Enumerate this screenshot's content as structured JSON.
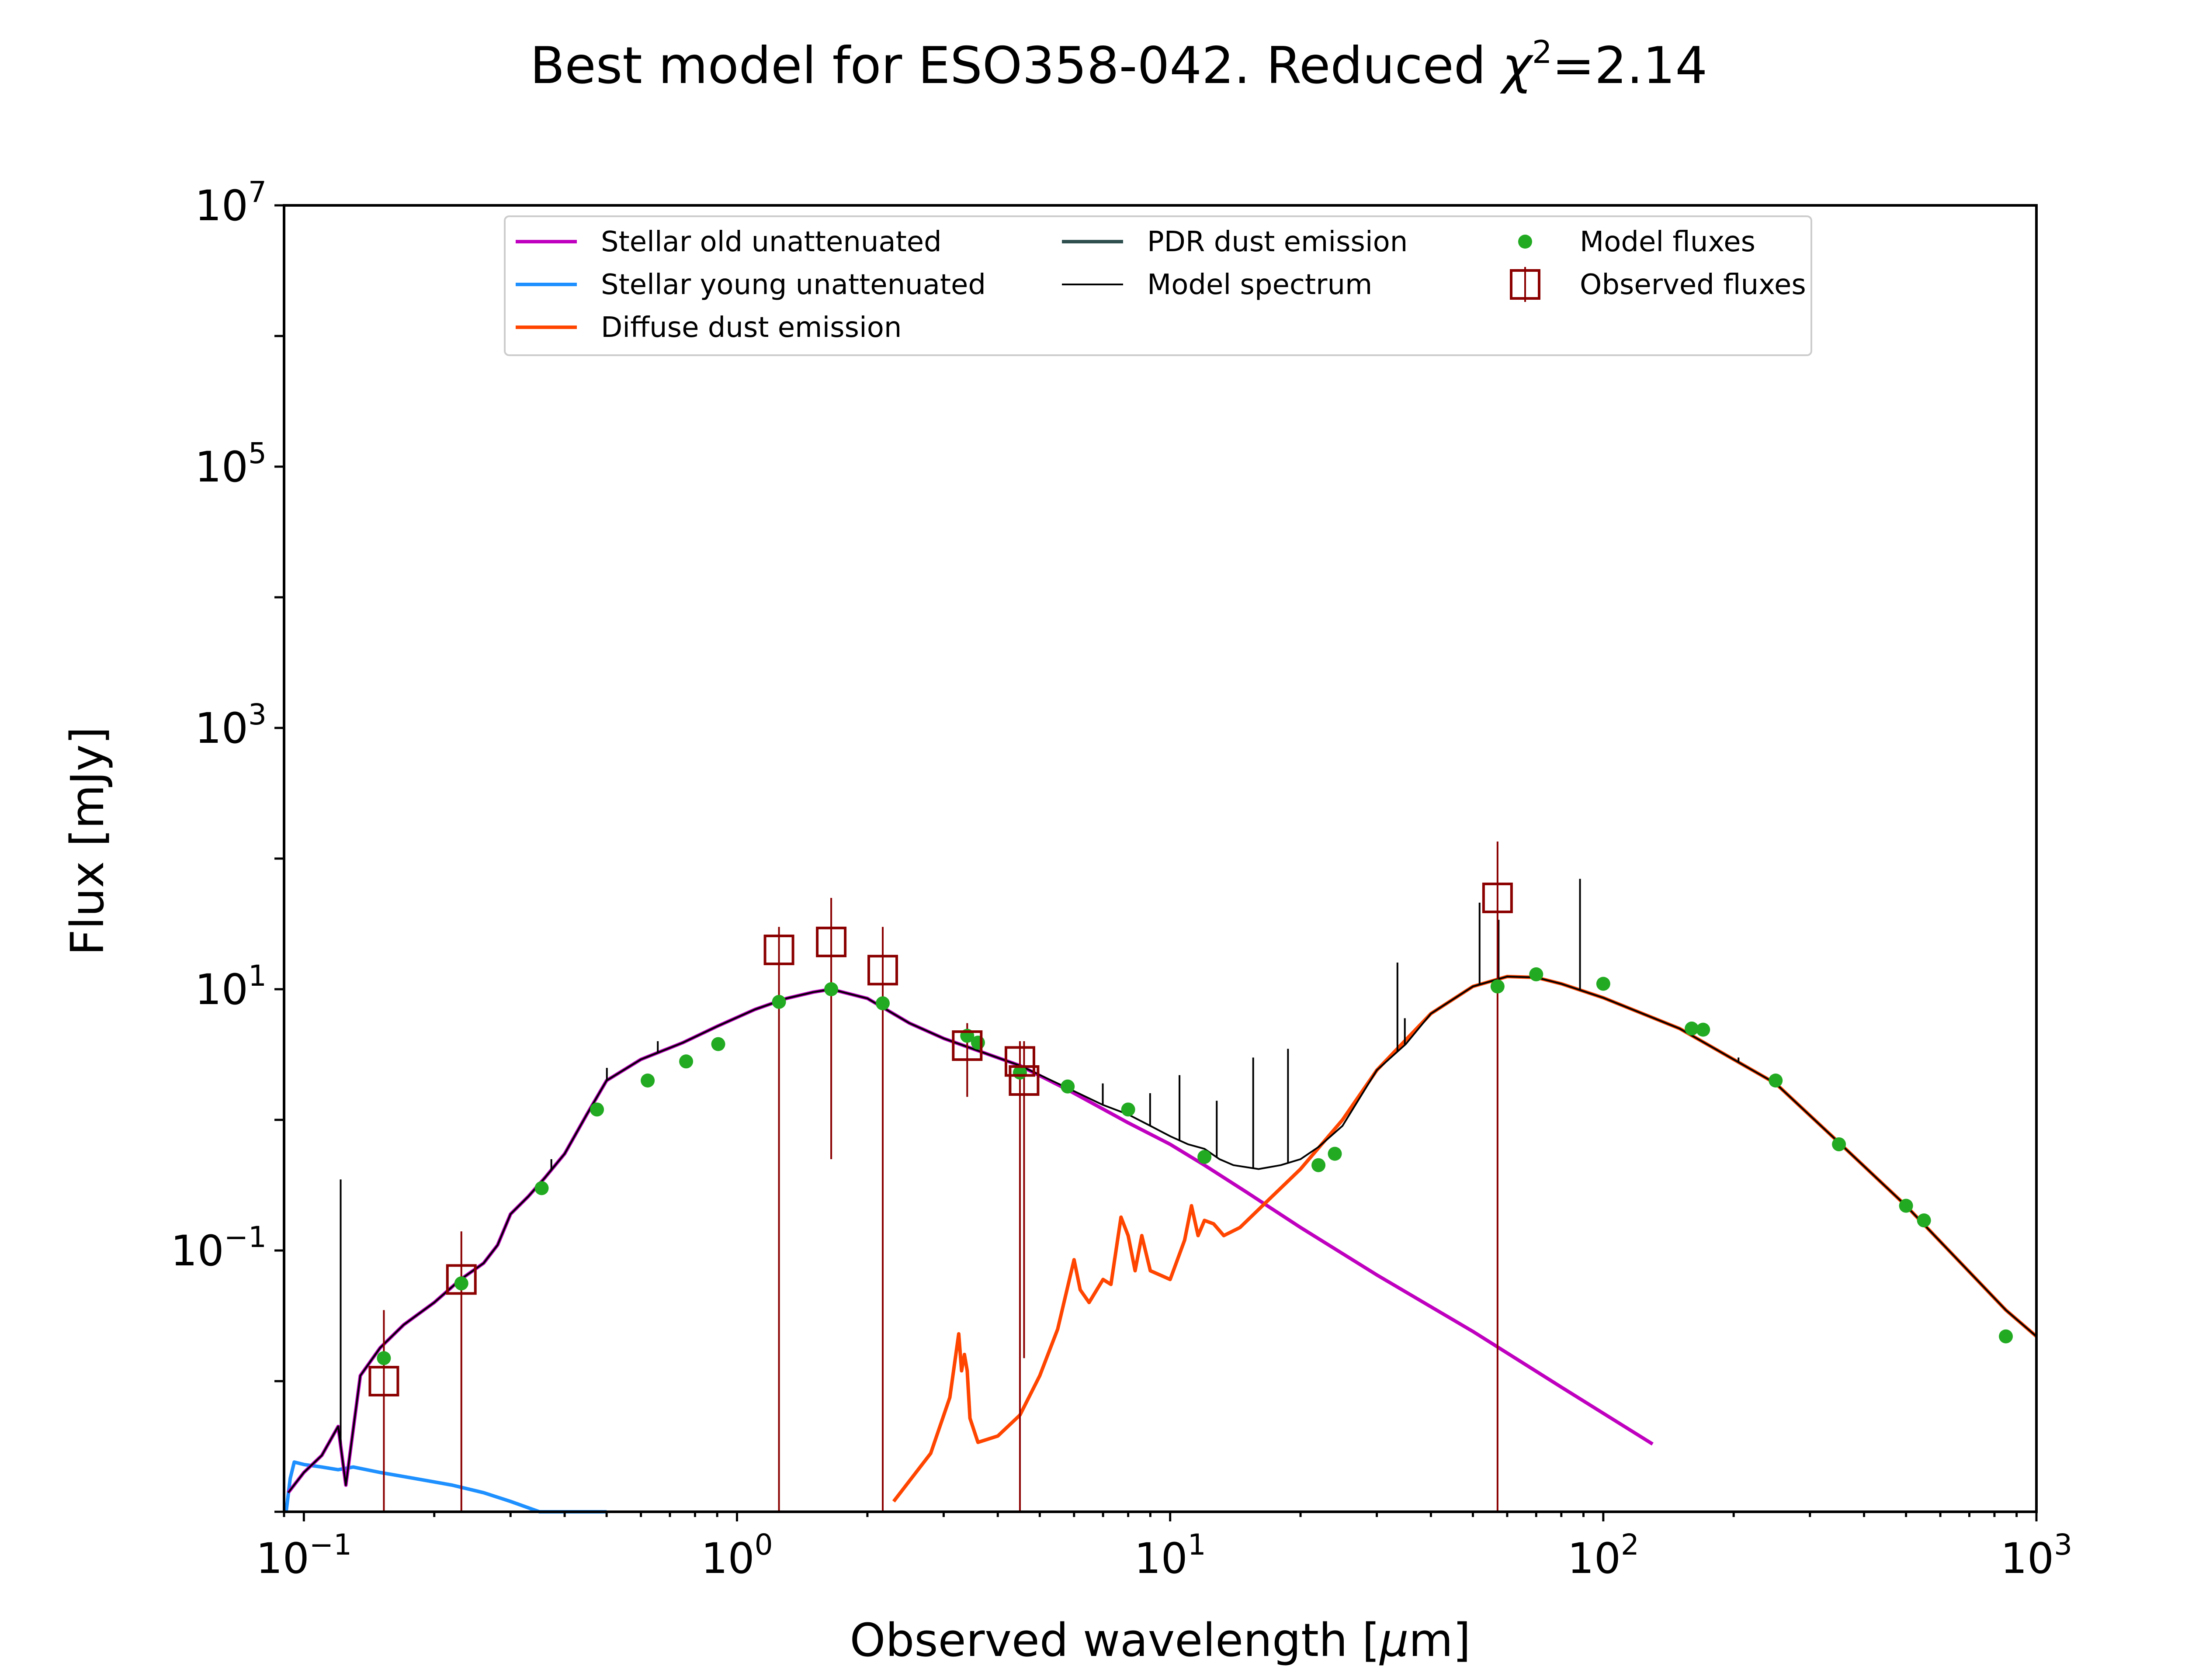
{
  "chart_data": {
    "type": "line",
    "title_prefix": "Best model for ESO358-042. Reduced ",
    "title_symbol": "χ",
    "title_exponent": "2",
    "title_suffix": "=2.14",
    "xlabel_prefix": "Observed wavelength [",
    "xlabel_mu": "μ",
    "xlabel_suffix": "m]",
    "ylabel": "Flux [mJy]",
    "xscale": "log",
    "yscale": "log",
    "xlim": [
      0.09,
      1000
    ],
    "ylim": [
      0.001,
      10000000
    ],
    "grid": false,
    "legend_position": "top-center",
    "x_tick_labels": [
      {
        "value": 0.1,
        "base": "10",
        "exp": "−1"
      },
      {
        "value": 1,
        "base": "10",
        "exp": "0"
      },
      {
        "value": 10,
        "base": "10",
        "exp": "1"
      },
      {
        "value": 100,
        "base": "10",
        "exp": "2"
      },
      {
        "value": 1000,
        "base": "10",
        "exp": "3"
      }
    ],
    "y_tick_labels": [
      {
        "value": 0.1,
        "base": "10",
        "exp": "−1"
      },
      {
        "value": 10,
        "base": "10",
        "exp": "1"
      },
      {
        "value": 1000,
        "base": "10",
        "exp": "3"
      },
      {
        "value": 100000,
        "base": "10",
        "exp": "5"
      },
      {
        "value": 10000000,
        "base": "10",
        "exp": "7"
      }
    ],
    "series": [
      {
        "name": "Stellar old unattenuated",
        "kind": "line",
        "color": "#bf00bf",
        "x": [
          0.092,
          0.1,
          0.11,
          0.12,
          0.125,
          0.135,
          0.15,
          0.17,
          0.2,
          0.23,
          0.26,
          0.28,
          0.3,
          0.33,
          0.36,
          0.4,
          0.45,
          0.5,
          0.6,
          0.75,
          0.9,
          1.1,
          1.3,
          1.5,
          1.65,
          2.0,
          2.5,
          3.0,
          3.5,
          4.5,
          5.8,
          8.0,
          10.0,
          12.0,
          15.0,
          20.0,
          30.0,
          50.0,
          80.0,
          130.0
        ],
        "y": [
          0.0014,
          0.002,
          0.0027,
          0.0045,
          0.0016,
          0.011,
          0.018,
          0.027,
          0.04,
          0.06,
          0.08,
          0.11,
          0.19,
          0.26,
          0.36,
          0.55,
          1.1,
          2.0,
          2.9,
          3.9,
          5.2,
          7.0,
          8.5,
          9.5,
          10.0,
          8.5,
          5.5,
          4.2,
          3.5,
          2.6,
          1.7,
          0.95,
          0.65,
          0.45,
          0.28,
          0.15,
          0.065,
          0.024,
          0.009,
          0.0033
        ]
      },
      {
        "name": "Stellar young unattenuated",
        "kind": "line",
        "color": "#1e90ff",
        "x": [
          0.091,
          0.093,
          0.095,
          0.1,
          0.11,
          0.12,
          0.13,
          0.15,
          0.18,
          0.22,
          0.26,
          0.3,
          0.35,
          0.4,
          0.45,
          0.5
        ],
        "y": [
          0.0007,
          0.0018,
          0.0024,
          0.0023,
          0.0022,
          0.0021,
          0.0022,
          0.002,
          0.0018,
          0.0016,
          0.0014,
          0.0012,
          0.001,
          0.0009,
          0.0009,
          0.0008
        ]
      },
      {
        "name": "Diffuse dust emission",
        "kind": "line",
        "color": "#ff4500",
        "x": [
          2.3,
          2.8,
          3.1,
          3.25,
          3.3,
          3.35,
          3.4,
          3.45,
          3.6,
          4.0,
          4.5,
          5.0,
          5.5,
          6.0,
          6.2,
          6.5,
          7.0,
          7.3,
          7.7,
          8.0,
          8.3,
          8.6,
          9.0,
          10.0,
          10.8,
          11.2,
          11.6,
          12.0,
          12.6,
          13.3,
          14.5,
          17.0,
          20.0,
          25.0,
          30.0,
          40.0,
          50.0,
          60.0,
          70.0,
          80.0,
          100.0,
          150.0,
          250.0,
          350.0,
          500.0,
          850.0,
          1000.0
        ],
        "y": [
          0.0012,
          0.0028,
          0.0075,
          0.023,
          0.012,
          0.016,
          0.012,
          0.0052,
          0.0034,
          0.0038,
          0.0055,
          0.011,
          0.025,
          0.085,
          0.05,
          0.04,
          0.06,
          0.055,
          0.18,
          0.13,
          0.07,
          0.13,
          0.07,
          0.06,
          0.12,
          0.22,
          0.13,
          0.17,
          0.16,
          0.13,
          0.15,
          0.25,
          0.42,
          1.0,
          2.4,
          6.5,
          10.5,
          12.5,
          12.3,
          11.0,
          8.6,
          5.0,
          1.9,
          0.67,
          0.22,
          0.035,
          0.022
        ]
      },
      {
        "name": "PDR dust emission",
        "kind": "line",
        "color": "#2f4f4f",
        "x": [],
        "y": []
      },
      {
        "name": "Model spectrum",
        "kind": "line",
        "color": "#000000",
        "x": [
          0.092,
          0.1,
          0.11,
          0.12,
          0.125,
          0.135,
          0.15,
          0.17,
          0.2,
          0.23,
          0.26,
          0.28,
          0.3,
          0.33,
          0.36,
          0.4,
          0.45,
          0.5,
          0.6,
          0.75,
          0.9,
          1.1,
          1.3,
          1.5,
          1.65,
          2.0,
          2.5,
          3.0,
          3.5,
          4.5,
          5.8,
          7.0,
          8.0,
          9.0,
          10.0,
          11.0,
          12.0,
          13.0,
          14.0,
          16.0,
          18.0,
          20.0,
          22.0,
          25.0,
          30.0,
          35.0,
          40.0,
          50.0,
          60.0,
          70.0,
          80.0,
          100.0,
          150.0,
          250.0,
          350.0,
          500.0,
          850.0,
          1000.0
        ],
        "y": [
          0.0014,
          0.002,
          0.0027,
          0.0045,
          0.0016,
          0.011,
          0.018,
          0.027,
          0.04,
          0.06,
          0.08,
          0.11,
          0.19,
          0.26,
          0.36,
          0.55,
          1.1,
          2.0,
          2.9,
          3.9,
          5.2,
          7.0,
          8.5,
          9.5,
          10.0,
          8.5,
          5.5,
          4.2,
          3.5,
          2.6,
          1.75,
          1.3,
          1.1,
          0.9,
          0.75,
          0.65,
          0.6,
          0.5,
          0.45,
          0.42,
          0.45,
          0.5,
          0.62,
          0.9,
          2.4,
          3.8,
          6.5,
          10.5,
          12.5,
          12.3,
          11.0,
          8.6,
          5.0,
          1.9,
          0.67,
          0.22,
          0.035,
          0.022
        ]
      },
      {
        "name": "Model fluxes",
        "kind": "scatter",
        "color": "#22aa22",
        "x": [
          0.153,
          0.231,
          0.354,
          0.475,
          0.622,
          0.763,
          0.905,
          1.25,
          1.65,
          2.17,
          3.4,
          3.6,
          4.5,
          5.8,
          8.0,
          12.0,
          22.0,
          24.0,
          57.0,
          70.0,
          100.0,
          160.0,
          170.0,
          250.0,
          350.0,
          500.0,
          550.0,
          850.0
        ],
        "y": [
          0.015,
          0.056,
          0.3,
          1.2,
          2.0,
          2.8,
          3.8,
          8.0,
          10.0,
          7.8,
          4.4,
          3.9,
          2.3,
          1.8,
          1.2,
          0.52,
          0.45,
          0.55,
          10.5,
          13.0,
          11.0,
          5.0,
          4.9,
          2.0,
          0.65,
          0.22,
          0.17,
          0.022
        ]
      },
      {
        "name": "Observed fluxes",
        "kind": "errorbar",
        "color": "#8b0000",
        "x": [
          0.153,
          0.231,
          1.25,
          1.65,
          2.17,
          3.4,
          4.5,
          4.6,
          57.0
        ],
        "y": [
          0.01,
          0.06,
          20,
          23,
          14,
          3.7,
          2.8,
          2.0,
          50
        ],
        "yerr_low": [
          0.001,
          0.001,
          0.001,
          0.5,
          0.001,
          1.5,
          0.001,
          0.015,
          0.001
        ],
        "yerr_high": [
          0.035,
          0.14,
          30,
          50,
          30,
          5.5,
          4.0,
          4.0,
          135
        ]
      }
    ],
    "spectral_lines": {
      "x": [
        0.1216,
        0.3727,
        0.5007,
        0.6563,
        6.99,
        8.99,
        10.51,
        12.81,
        15.55,
        18.71,
        33.48,
        34.82,
        51.81,
        57.32,
        88.36,
        205.2
      ],
      "y": [
        0.35,
        0.5,
        2.5,
        4.0,
        1.9,
        1.6,
        2.2,
        1.4,
        3.0,
        3.5,
        16.0,
        6.0,
        46.0,
        34.0,
        70.0,
        3.0
      ]
    },
    "legend_entries": [
      {
        "label": "Stellar old unattenuated",
        "kind": "line",
        "color": "#bf00bf"
      },
      {
        "label": "PDR dust emission",
        "kind": "line",
        "color": "#2f4f4f"
      },
      {
        "label": "Model fluxes",
        "kind": "dot",
        "color": "#22aa22"
      },
      {
        "label": "Stellar young unattenuated",
        "kind": "line",
        "color": "#1e90ff"
      },
      {
        "label": "Model spectrum",
        "kind": "thin-line",
        "color": "#000000"
      },
      {
        "label": "Observed fluxes",
        "kind": "square",
        "color": "#8b0000"
      },
      {
        "label": "Diffuse dust emission",
        "kind": "line",
        "color": "#ff4500"
      }
    ]
  }
}
